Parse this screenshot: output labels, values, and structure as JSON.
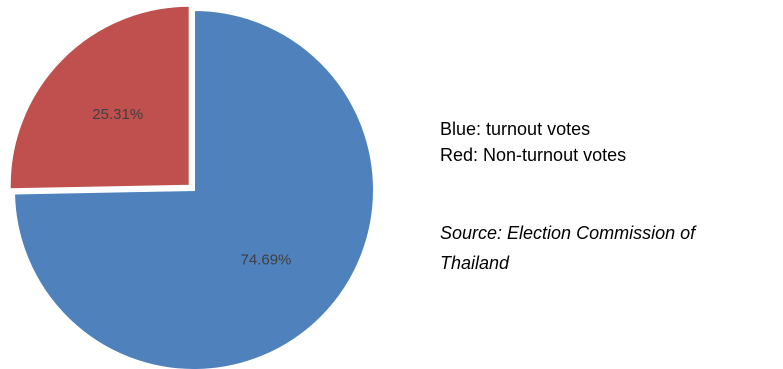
{
  "chart_data": {
    "type": "pie",
    "title": "",
    "slices": [
      {
        "value": 74.69,
        "label": "74.69%",
        "color": "#4f81bd"
      },
      {
        "value": 25.31,
        "label": "25.31%",
        "color": "#c0504d"
      }
    ],
    "start_angle_deg": 0,
    "direction": "clockwise",
    "exploded_slice": 1
  },
  "legend": {
    "line1": "Blue: turnout votes",
    "line2": "Red: Non-turnout votes"
  },
  "source": {
    "line1": "Source: Election Commission of",
    "line2": "Thailand"
  }
}
